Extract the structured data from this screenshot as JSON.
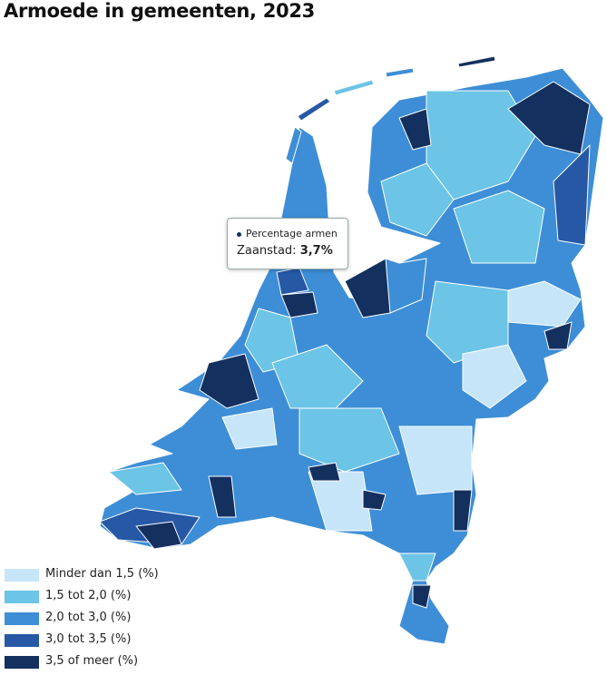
{
  "title": "Armoede in gemeenten, 2023",
  "tooltip": {
    "heading": "Percentage armen",
    "label": "Zaanstad:",
    "value": "3,7%"
  },
  "legend": [
    {
      "label": "Minder dan 1,5 (%)",
      "color": "#c6e5f8"
    },
    {
      "label": "1,5 tot 2,0 (%)",
      "color": "#6cc4e6"
    },
    {
      "label": "2,0 tot 3,0 (%)",
      "color": "#3d8ed6"
    },
    {
      "label": "3,0 tot 3,5 (%)",
      "color": "#2658a6"
    },
    {
      "label": "3,5 of meer (%)",
      "color": "#14305f"
    }
  ]
}
